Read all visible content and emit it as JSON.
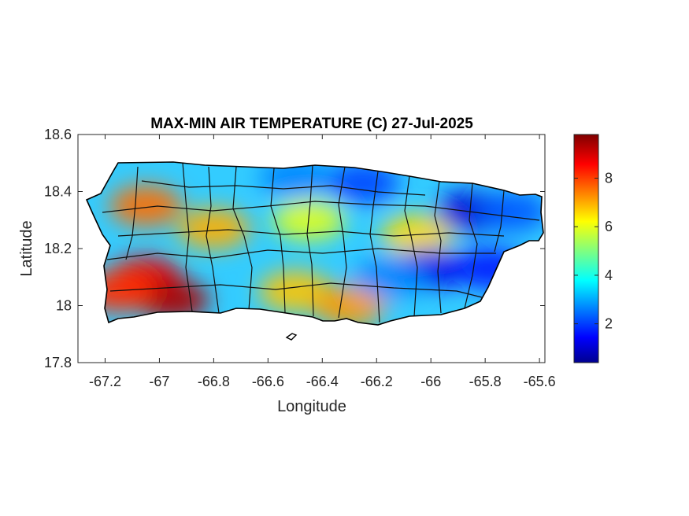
{
  "chart_data": {
    "type": "heatmap",
    "title": "MAX-MIN AIR TEMPERATURE (C) 27-Jul-2025",
    "xlabel": "Longitude",
    "ylabel": "Latitude",
    "xlim": [
      -67.3,
      -65.58
    ],
    "ylim": [
      17.8,
      18.6
    ],
    "x_ticks": [
      "-67.2",
      "-67",
      "-66.8",
      "-66.6",
      "-66.4",
      "-66.2",
      "-66",
      "-65.8",
      "-65.6"
    ],
    "x_tick_values": [
      -67.2,
      -67.0,
      -66.8,
      -66.6,
      -66.4,
      -66.2,
      -66.0,
      -65.8,
      -65.6
    ],
    "y_ticks": [
      "18.6",
      "18.4",
      "18.2",
      "18",
      "17.8"
    ],
    "y_tick_values": [
      18.6,
      18.4,
      18.2,
      18.0,
      17.8
    ],
    "colorbar": {
      "colormap": "jet",
      "range": [
        0.4,
        9.8
      ],
      "ticks": [
        "2",
        "4",
        "6",
        "8"
      ],
      "tick_values": [
        2,
        4,
        6,
        8
      ]
    },
    "grid": false,
    "regions": [
      {
        "lon": -67.05,
        "lat": 18.1,
        "value": 8.8
      },
      {
        "lon": -66.95,
        "lat": 18.02,
        "value": 9.4
      },
      {
        "lon": -67.15,
        "lat": 18.05,
        "value": 8.2
      },
      {
        "lon": -67.05,
        "lat": 18.35,
        "value": 7.6
      },
      {
        "lon": -66.8,
        "lat": 18.27,
        "value": 7.0
      },
      {
        "lon": -66.5,
        "lat": 18.05,
        "value": 6.8
      },
      {
        "lon": -66.3,
        "lat": 18.0,
        "value": 7.2
      },
      {
        "lon": -66.45,
        "lat": 18.3,
        "value": 6.0
      },
      {
        "lon": -66.05,
        "lat": 18.25,
        "value": 6.6
      },
      {
        "lon": -66.5,
        "lat": 18.45,
        "value": 2.8
      },
      {
        "lon": -66.25,
        "lat": 18.43,
        "value": 2.2
      },
      {
        "lon": -65.85,
        "lat": 18.33,
        "value": 1.2
      },
      {
        "lon": -66.0,
        "lat": 18.13,
        "value": 1.4
      },
      {
        "lon": -65.78,
        "lat": 18.13,
        "value": 1.8
      },
      {
        "lon": -66.15,
        "lat": 18.1,
        "value": 2.8
      },
      {
        "lon": -65.7,
        "lat": 18.33,
        "value": 2.4
      }
    ]
  }
}
